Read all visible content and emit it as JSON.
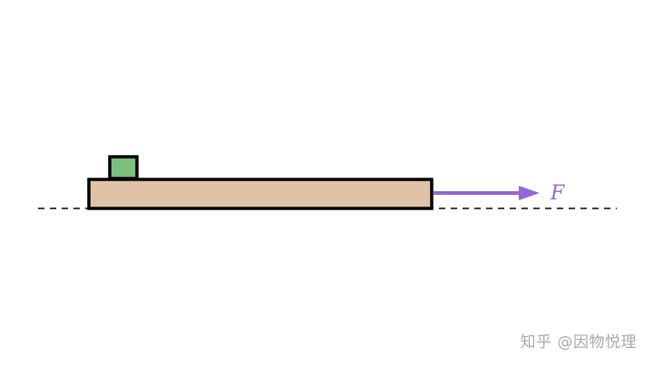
{
  "diagram": {
    "force_label": "F",
    "watermark": "知乎 @因物悦理"
  },
  "colors": {
    "board_fill": "#e0c2a6",
    "block_fill": "#7cbf7c",
    "outline": "#000000",
    "force_arrow": "#9466d6",
    "ground_line": "#000000",
    "watermark": "#a9a9a9"
  }
}
